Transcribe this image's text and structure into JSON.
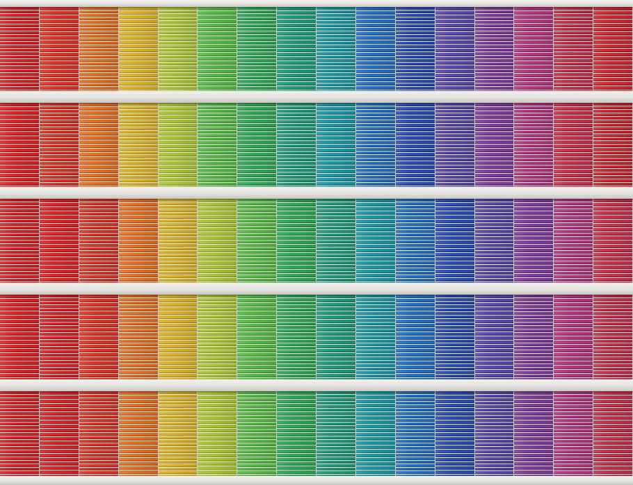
{
  "scene": {
    "subject": "facade-of-colored-horizontal-blinds",
    "rows": 5,
    "columns": 16,
    "spectrum": [
      "#d8262b",
      "#d9372c",
      "#e0702a",
      "#d9b02e",
      "#a9c23a",
      "#58b84a",
      "#33a55a",
      "#23997a",
      "#1f95a4",
      "#2a6fbf",
      "#2f4fb0",
      "#5a4aa8",
      "#7d3f9c",
      "#b13a7e",
      "#c2334f",
      "#c92c36"
    ],
    "row_shift": [
      0,
      0,
      1,
      1,
      1
    ],
    "band_color": "#e8e6e2",
    "stripe_light": "#f4f1e8"
  }
}
